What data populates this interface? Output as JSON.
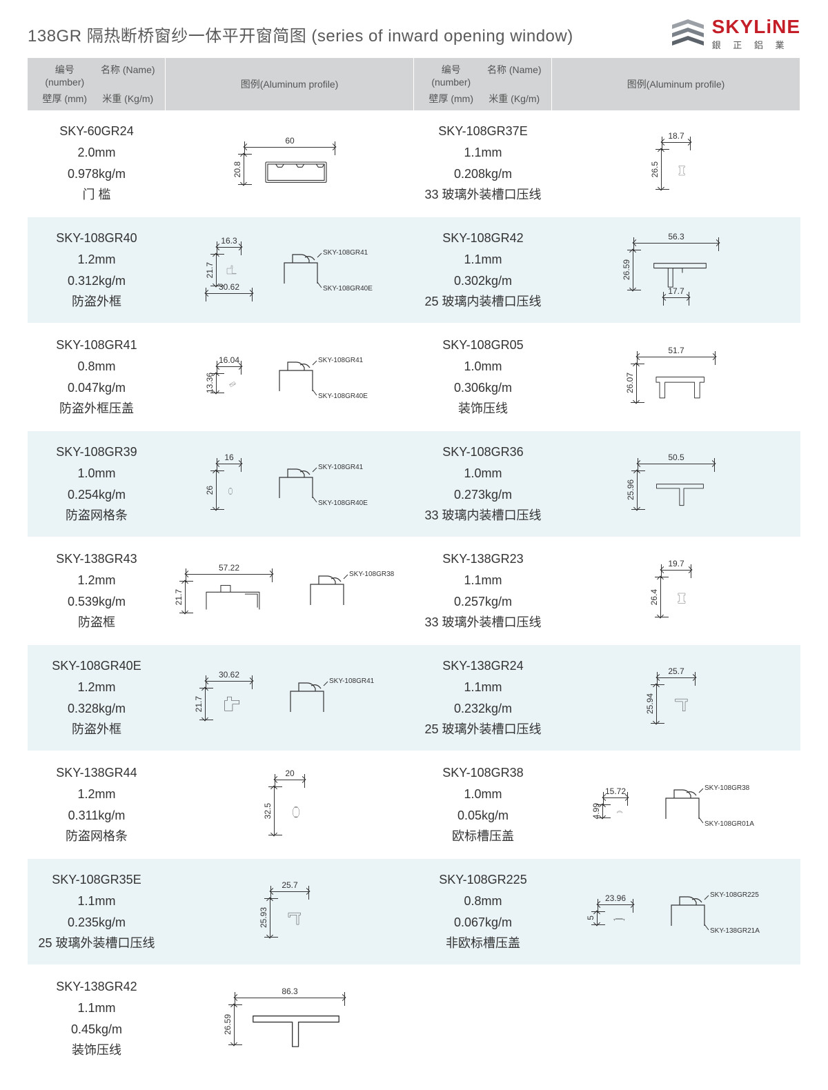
{
  "page_title": "138GR 隔热断桥窗纱一体平开窗简图 (series of inward opening window)",
  "brand": {
    "name": "SKYLiNE",
    "sub": "銀 正 鋁 業"
  },
  "header_labels": {
    "number": "编号 (number)",
    "name": "名称 (Name)",
    "thickness": "壁厚 (mm)",
    "weight": "米重 (Kg/m)",
    "profile": "图例(Aluminum profile)"
  },
  "colors": {
    "header_bg": "#d2d4d6",
    "row_alt_bg": "#eaf3f6",
    "row_bg": "#ffffff",
    "text": "#3a3a3a",
    "brand_red": "#c41e28"
  },
  "left": [
    {
      "number": "SKY-60GR24",
      "thk": "2.0mm",
      "wt": "0.978kg/m",
      "name": "门 槛",
      "dims": {
        "w": "60",
        "h": "20.8"
      },
      "shape": "rect-slot"
    },
    {
      "number": "SKY-108GR40",
      "thk": "1.2mm",
      "wt": "0.312kg/m",
      "name": "防盗外框",
      "dims": {
        "w": "16.3",
        "h": "21.7",
        "w2": "30.62"
      },
      "refs": [
        "SKY-108GR41",
        "SKY-108GR40E"
      ],
      "shape": "step-L"
    },
    {
      "number": "SKY-108GR41",
      "thk": "0.8mm",
      "wt": "0.047kg/m",
      "name": "防盗外框压盖",
      "dims": {
        "w": "16.04",
        "h": "13.36"
      },
      "refs": [
        "SKY-108GR41",
        "SKY-108GR40E"
      ],
      "shape": "angled-clip"
    },
    {
      "number": "SKY-108GR39",
      "thk": "1.0mm",
      "wt": "0.254kg/m",
      "name": "防盗网格条",
      "dims": {
        "w": "16",
        "h": "26"
      },
      "refs": [
        "SKY-108GR41",
        "SKY-108GR40E"
      ],
      "shape": "oval-slot"
    },
    {
      "number": "SKY-138GR43",
      "thk": "1.2mm",
      "wt": "0.539kg/m",
      "name": "防盗框",
      "dims": {
        "w": "57.22",
        "h": "21.7"
      },
      "refs": [
        "SKY-108GR38"
      ],
      "shape": "wide-channel"
    },
    {
      "number": "SKY-108GR40E",
      "thk": "1.2mm",
      "wt": "0.328kg/m",
      "name": "防盗外框",
      "dims": {
        "w": "30.62",
        "h": "21.7"
      },
      "refs": [
        "SKY-108GR41"
      ],
      "shape": "step-L2"
    },
    {
      "number": "SKY-138GR44",
      "thk": "1.2mm",
      "wt": "0.311kg/m",
      "name": "防盗网格条",
      "dims": {
        "w": "20",
        "h": "32.5"
      },
      "shape": "oval"
    },
    {
      "number": "SKY-108GR35E",
      "thk": "1.1mm",
      "wt": "0.235kg/m",
      "name": "25 玻璃外装槽口压线",
      "dims": {
        "w": "25.7",
        "h": "25.93"
      },
      "shape": "clip-down"
    },
    {
      "number": "SKY-138GR42",
      "thk": "1.1mm",
      "wt": "0.45kg/m",
      "name": "装饰压线",
      "dims": {
        "w": "86.3",
        "h": "26.59"
      },
      "shape": "long-channel"
    }
  ],
  "right": [
    {
      "number": "SKY-108GR37E",
      "thk": "1.1mm",
      "wt": "0.208kg/m",
      "name": "33 玻璃外装槽口压线",
      "dims": {
        "w": "18.7",
        "h": "26.5"
      },
      "shape": "clip-c"
    },
    {
      "number": "SKY-108GR42",
      "thk": "1.1mm",
      "wt": "0.302kg/m",
      "name": "25 玻璃内装槽口压线",
      "dims": {
        "w": "56.3",
        "w2": "17.7",
        "h": "26.59"
      },
      "shape": "offset-channel"
    },
    {
      "number": "SKY-108GR05",
      "thk": "1.0mm",
      "wt": "0.306kg/m",
      "name": "装饰压线",
      "dims": {
        "w": "51.7",
        "h": "26.07"
      },
      "shape": "wide-clip"
    },
    {
      "number": "SKY-108GR36",
      "thk": "1.0mm",
      "wt": "0.273kg/m",
      "name": "33 玻璃内装槽口压线",
      "dims": {
        "w": "50.5",
        "h": "25.96"
      },
      "shape": "mid-channel"
    },
    {
      "number": "SKY-138GR23",
      "thk": "1.1mm",
      "wt": "0.257kg/m",
      "name": "33 玻璃外装槽口压线",
      "dims": {
        "w": "19.7",
        "h": "26.4"
      },
      "shape": "clip-c2"
    },
    {
      "number": "SKY-138GR24",
      "thk": "1.1mm",
      "wt": "0.232kg/m",
      "name": "25 玻璃外装槽口压线",
      "dims": {
        "w": "25.7",
        "h": "25.94"
      },
      "shape": "clip-down2"
    },
    {
      "number": "SKY-108GR38",
      "thk": "1.0mm",
      "wt": "0.05kg/m",
      "name": "欧标槽压盖",
      "dims": {
        "w": "15.72",
        "h": "4.99"
      },
      "refs": [
        "SKY-108GR38",
        "SKY-108GR01A"
      ],
      "shape": "small-cap"
    },
    {
      "number": "SKY-108GR225",
      "thk": "0.8mm",
      "wt": "0.067kg/m",
      "name": "非欧标槽压盖",
      "dims": {
        "w": "23.96",
        "h": "5"
      },
      "refs": [
        "SKY-108GR225",
        "SKY-138GR21A"
      ],
      "shape": "small-cap2"
    }
  ]
}
